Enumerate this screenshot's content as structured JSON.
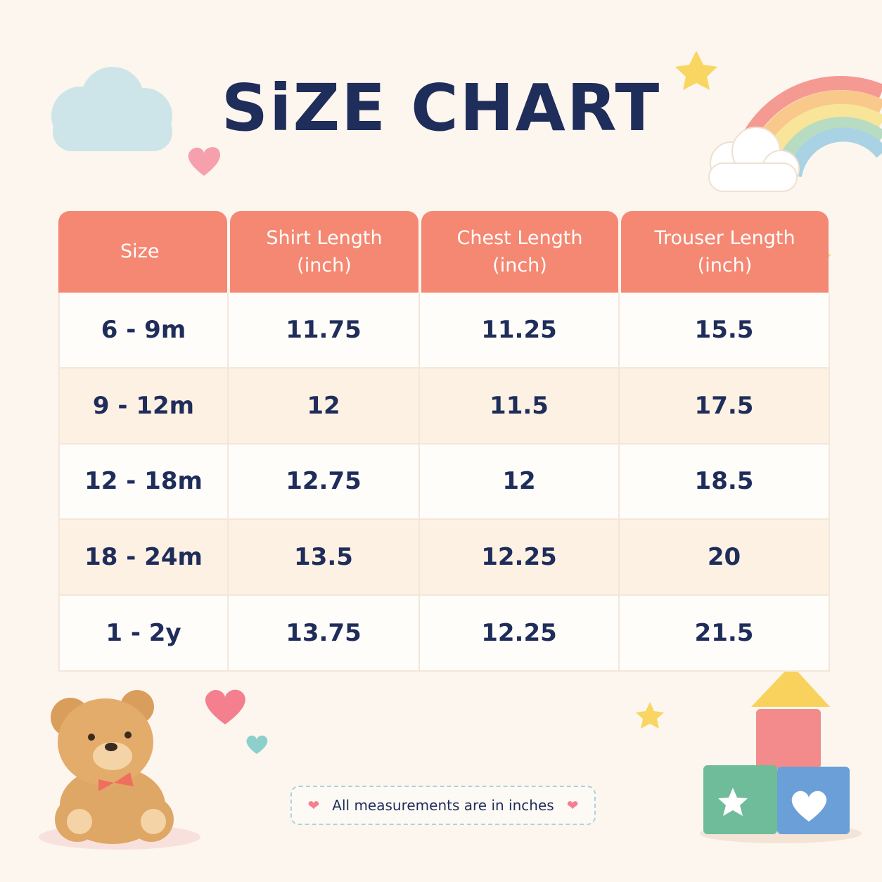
{
  "title": "SiZE CHART",
  "table": {
    "header": [
      "Size",
      "Shirt Length (inch)",
      "Chest Length (inch)",
      "Trouser Length (inch)"
    ],
    "rows": [
      [
        "6 - 9m",
        "11.75",
        "11.25",
        "15.5"
      ],
      [
        "9 - 12m",
        "12",
        "11.5",
        "17.5"
      ],
      [
        "12 - 18m",
        "12.75",
        "12",
        "18.5"
      ],
      [
        "18 - 24m",
        "13.5",
        "12.25",
        "20"
      ],
      [
        "1 - 2y",
        "13.75",
        "12.25",
        "21.5"
      ]
    ]
  },
  "note": "All measurements are in inches"
}
